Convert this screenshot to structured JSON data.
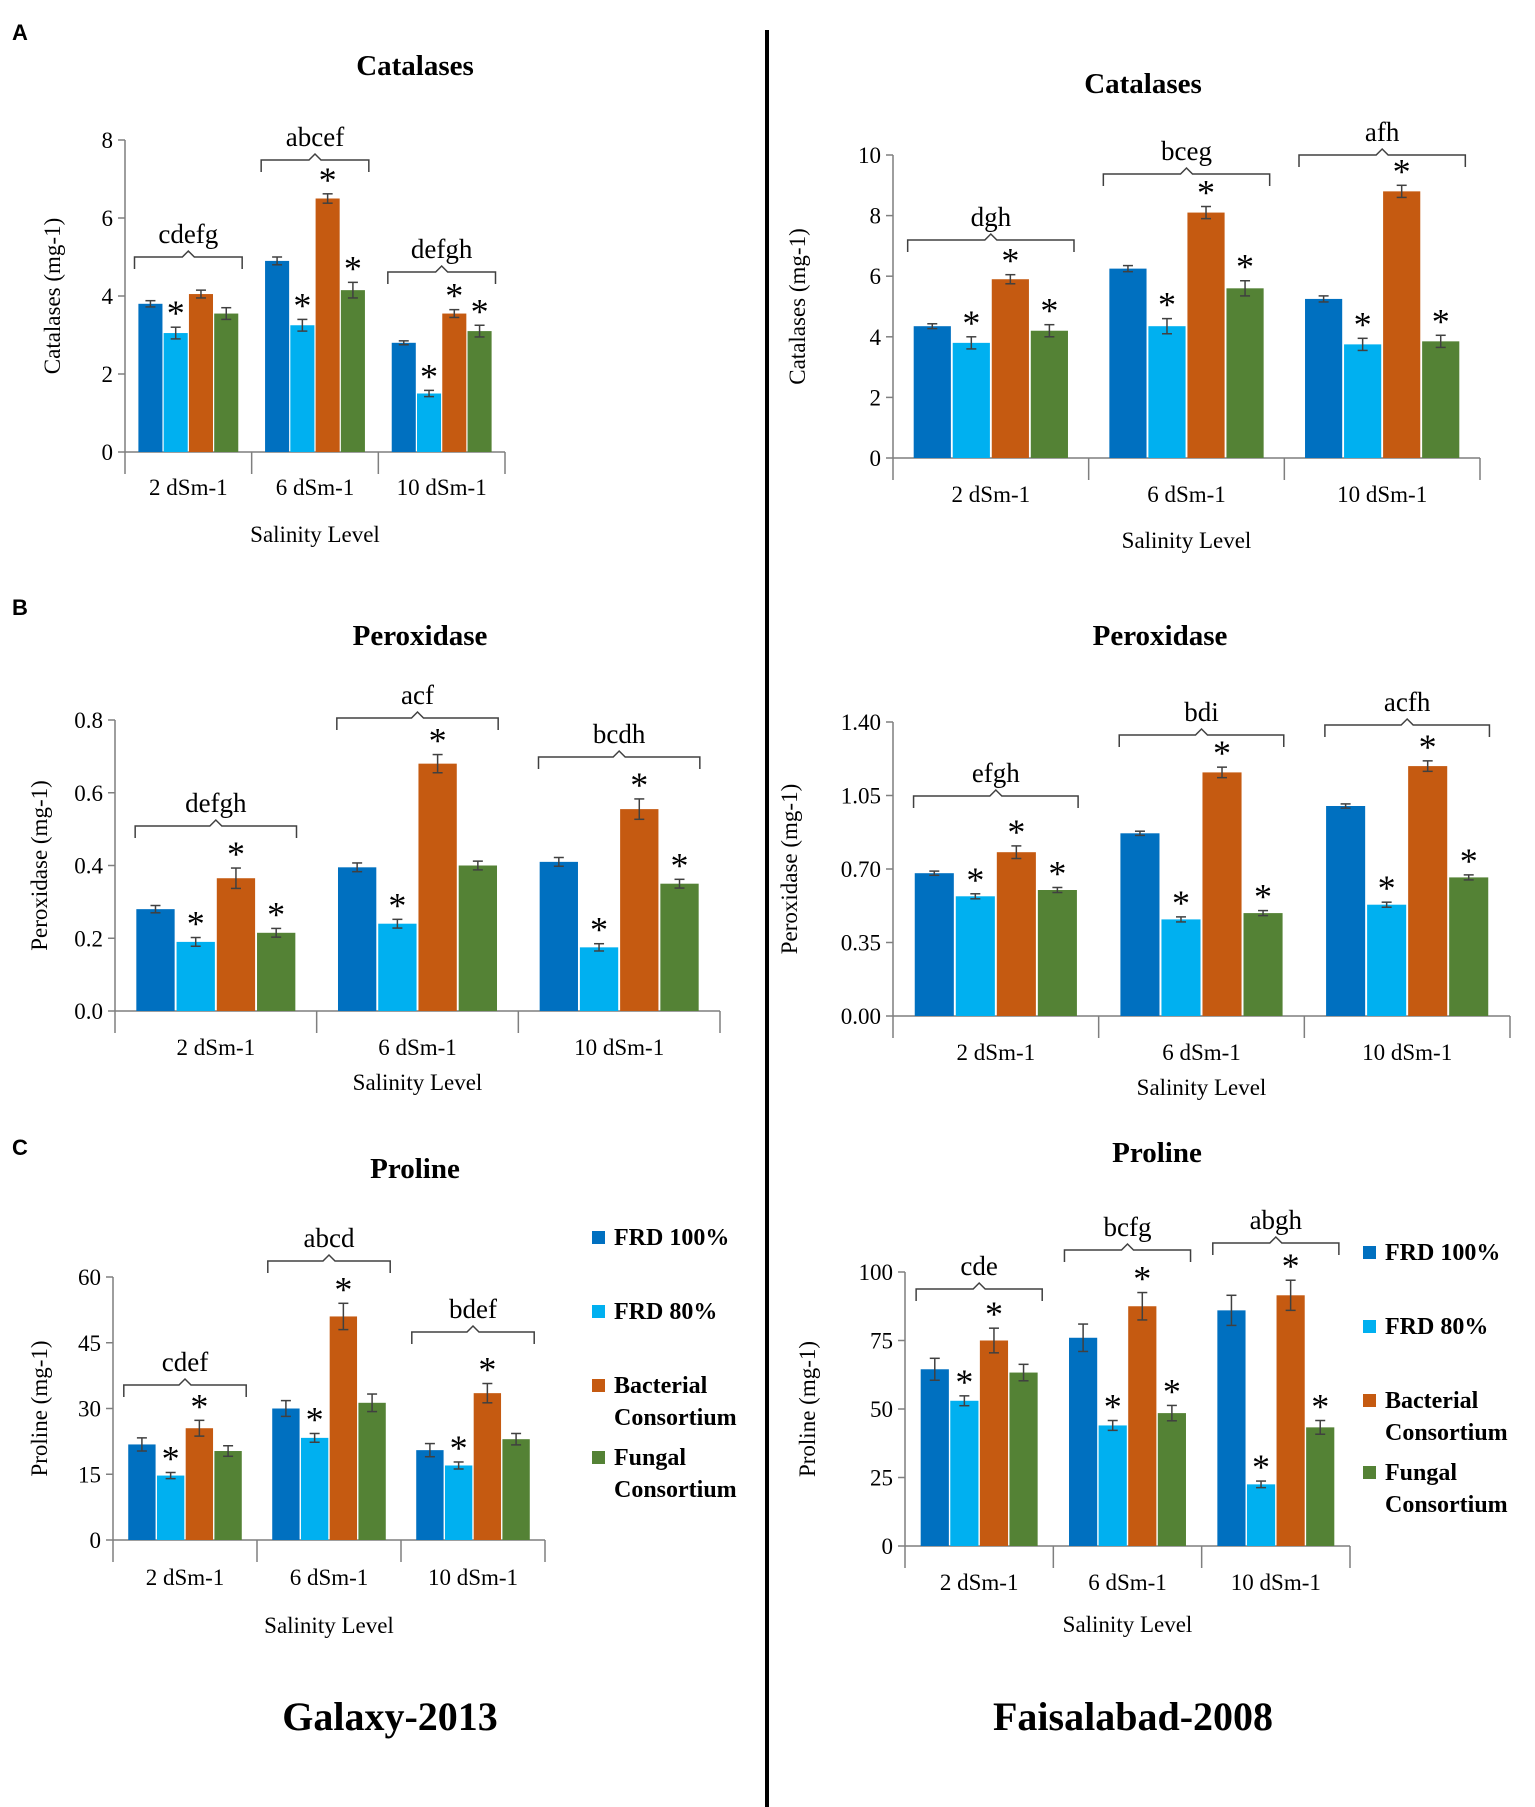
{
  "colors": {
    "FRD 100%": "#0070c0",
    "FRD 80%": "#00b0f0",
    "Bacterial Consortium": "#c55a11",
    "Fungal Consortium": "#548235",
    "axis": "#7f7f7f",
    "error": "#404040"
  },
  "panels": [
    {
      "letter": "A"
    },
    {
      "letter": "B"
    },
    {
      "letter": "C"
    }
  ],
  "columns": [
    {
      "cultivar": "Galaxy-2013"
    },
    {
      "cultivar": "Faisalabad-2008"
    }
  ],
  "legend_entries": [
    [
      "FRD 100%"
    ],
    [
      "FRD 80%"
    ],
    [
      "Bacterial",
      "Consortium"
    ],
    [
      "Fungal",
      "Consortium"
    ]
  ],
  "chart_data": [
    {
      "id": "a-left",
      "type": "bar",
      "title": "Catalases",
      "ylabel": "Catalases  (mg-1)",
      "xlabel": "Salinity Level",
      "categories": [
        "2 dSm-1",
        "6 dSm-1",
        "10 dSm-1"
      ],
      "ylim": [
        0,
        8
      ],
      "ticks": [
        "0",
        "2",
        "4",
        "6",
        "8"
      ],
      "legend": "none",
      "series": [
        {
          "name": "FRD 100%",
          "values": [
            3.8,
            4.9,
            2.8
          ],
          "errors": [
            0.08,
            0.1,
            0.05
          ],
          "stars": [
            false,
            false,
            false
          ]
        },
        {
          "name": "FRD 80%",
          "values": [
            3.05,
            3.25,
            1.5
          ],
          "errors": [
            0.15,
            0.15,
            0.08
          ],
          "stars": [
            true,
            true,
            true
          ]
        },
        {
          "name": "Bacterial Consortium",
          "values": [
            4.05,
            6.5,
            3.55
          ],
          "errors": [
            0.1,
            0.12,
            0.1
          ],
          "stars": [
            false,
            true,
            true
          ]
        },
        {
          "name": "Fungal Consortium",
          "values": [
            3.55,
            4.15,
            3.1
          ],
          "errors": [
            0.15,
            0.2,
            0.15
          ],
          "stars": [
            false,
            true,
            true
          ]
        }
      ],
      "offset_stars": [
        {
          "category": 0,
          "series": 3
        }
      ],
      "group_labels": [
        "cdefg",
        "abcef",
        "defgh"
      ]
    },
    {
      "id": "a-right",
      "type": "bar",
      "title": "Catalases",
      "ylabel": "Catalases (mg-1)",
      "xlabel": "Salinity Level",
      "categories": [
        "2 dSm-1",
        "6 dSm-1",
        "10 dSm-1"
      ],
      "ylim": [
        0,
        10
      ],
      "ticks": [
        "0",
        "2",
        "4",
        "6",
        "8",
        "10"
      ],
      "legend": "none",
      "series": [
        {
          "name": "FRD 100%",
          "values": [
            4.35,
            6.25,
            5.25
          ],
          "errors": [
            0.08,
            0.1,
            0.1
          ],
          "stars": [
            false,
            false,
            false
          ]
        },
        {
          "name": "FRD 80%",
          "values": [
            3.8,
            4.35,
            3.75
          ],
          "errors": [
            0.2,
            0.25,
            0.2
          ],
          "stars": [
            true,
            true,
            true
          ]
        },
        {
          "name": "Bacterial Consortium",
          "values": [
            5.9,
            8.1,
            8.8
          ],
          "errors": [
            0.15,
            0.2,
            0.2
          ],
          "stars": [
            true,
            true,
            true
          ]
        },
        {
          "name": "Fungal Consortium",
          "values": [
            4.2,
            5.6,
            3.85
          ],
          "errors": [
            0.2,
            0.25,
            0.2
          ],
          "stars": [
            true,
            true,
            true
          ]
        }
      ],
      "offset_stars": [],
      "group_labels": [
        "dgh",
        "bceg",
        "afh"
      ]
    },
    {
      "id": "b-left",
      "type": "bar",
      "title": "Peroxidase",
      "ylabel": "Peroxidase (mg-1)",
      "xlabel": "Salinity Level",
      "categories": [
        "2 dSm-1",
        "6 dSm-1",
        "10 dSm-1"
      ],
      "ylim": [
        0,
        0.8
      ],
      "ticks": [
        "0.0",
        "0.2",
        "0.4",
        "0.6",
        "0.8"
      ],
      "legend": "none",
      "series": [
        {
          "name": "FRD 100%",
          "values": [
            0.28,
            0.395,
            0.41
          ],
          "errors": [
            0.01,
            0.012,
            0.012
          ],
          "stars": [
            false,
            false,
            false
          ]
        },
        {
          "name": "FRD 80%",
          "values": [
            0.19,
            0.24,
            0.175
          ],
          "errors": [
            0.012,
            0.012,
            0.01
          ],
          "stars": [
            true,
            true,
            true
          ]
        },
        {
          "name": "Bacterial Consortium",
          "values": [
            0.365,
            0.68,
            0.555
          ],
          "errors": [
            0.028,
            0.025,
            0.028
          ],
          "stars": [
            true,
            true,
            true
          ]
        },
        {
          "name": "Fungal Consortium",
          "values": [
            0.215,
            0.4,
            0.35
          ],
          "errors": [
            0.012,
            0.012,
            0.012
          ],
          "stars": [
            true,
            false,
            true
          ]
        }
      ],
      "offset_stars": [],
      "group_labels": [
        "defgh",
        "acf",
        "bcdh"
      ]
    },
    {
      "id": "b-right",
      "type": "bar",
      "title": "Peroxidase",
      "ylabel": "Peroxidase (mg-1)",
      "xlabel": "Salinity Level",
      "categories": [
        "2 dSm-1",
        "6 dSm-1",
        "10 dSm-1"
      ],
      "ylim": [
        0,
        1.4
      ],
      "ticks": [
        "0.00",
        "0.35",
        "0.70",
        "1.05",
        "1.40"
      ],
      "legend": "none",
      "series": [
        {
          "name": "FRD 100%",
          "values": [
            0.68,
            0.87,
            1.0
          ],
          "errors": [
            0.01,
            0.01,
            0.01
          ],
          "stars": [
            false,
            false,
            false
          ]
        },
        {
          "name": "FRD 80%",
          "values": [
            0.57,
            0.46,
            0.53
          ],
          "errors": [
            0.012,
            0.012,
            0.012
          ],
          "stars": [
            true,
            true,
            true
          ]
        },
        {
          "name": "Bacterial Consortium",
          "values": [
            0.78,
            1.16,
            1.19
          ],
          "errors": [
            0.03,
            0.025,
            0.025
          ],
          "stars": [
            true,
            true,
            true
          ]
        },
        {
          "name": "Fungal Consortium",
          "values": [
            0.6,
            0.49,
            0.66
          ],
          "errors": [
            0.012,
            0.012,
            0.012
          ],
          "stars": [
            true,
            true,
            true
          ]
        }
      ],
      "offset_stars": [],
      "group_labels": [
        "efgh",
        "bdi",
        "acfh"
      ]
    },
    {
      "id": "c-left",
      "type": "bar",
      "title": "Proline",
      "ylabel": "Proline (mg-1)",
      "xlabel": "Salinity Level",
      "categories": [
        "2 dSm-1",
        "6 dSm-1",
        "10 dSm-1"
      ],
      "ylim": [
        0,
        60
      ],
      "ticks": [
        "0",
        "15",
        "30",
        "45",
        "60"
      ],
      "legend": "right",
      "series": [
        {
          "name": "FRD 100%",
          "values": [
            21.8,
            30.0,
            20.5
          ],
          "errors": [
            1.5,
            1.8,
            1.5
          ],
          "stars": [
            false,
            false,
            false
          ]
        },
        {
          "name": "FRD 80%",
          "values": [
            14.7,
            23.3,
            17.0
          ],
          "errors": [
            0.7,
            1.0,
            0.8
          ],
          "stars": [
            true,
            true,
            true
          ]
        },
        {
          "name": "Bacterial Consortium",
          "values": [
            25.5,
            51.0,
            33.5
          ],
          "errors": [
            1.8,
            3.0,
            2.2
          ],
          "stars": [
            true,
            true,
            true
          ]
        },
        {
          "name": "Fungal Consortium",
          "values": [
            20.3,
            31.3,
            23.0
          ],
          "errors": [
            1.2,
            2.0,
            1.3
          ],
          "stars": [
            false,
            false,
            false
          ]
        }
      ],
      "offset_stars": [],
      "group_labels": [
        "cdef",
        "abcd",
        "bdef"
      ]
    },
    {
      "id": "c-right",
      "type": "bar",
      "title": "Proline",
      "ylabel": "Proline (mg-1)",
      "xlabel": "Salinity Level",
      "categories": [
        "2 dSm-1",
        "6 dSm-1",
        "10 dSm-1"
      ],
      "ylim": [
        0,
        100
      ],
      "ticks": [
        "0",
        "25",
        "50",
        "75",
        "100"
      ],
      "legend": "right",
      "series": [
        {
          "name": "FRD 100%",
          "values": [
            64.5,
            76.0,
            86.0
          ],
          "errors": [
            4.0,
            5.0,
            5.5
          ],
          "stars": [
            false,
            false,
            false
          ]
        },
        {
          "name": "FRD 80%",
          "values": [
            53.0,
            44.0,
            22.5
          ],
          "errors": [
            1.8,
            1.8,
            1.2
          ],
          "stars": [
            true,
            true,
            true
          ]
        },
        {
          "name": "Bacterial Consortium",
          "values": [
            75.0,
            87.5,
            91.5
          ],
          "errors": [
            4.5,
            5.0,
            5.5
          ],
          "stars": [
            true,
            true,
            true
          ]
        },
        {
          "name": "Fungal Consortium",
          "values": [
            63.3,
            48.5,
            43.3
          ],
          "errors": [
            3.0,
            2.8,
            2.5
          ],
          "stars": [
            false,
            true,
            true
          ]
        }
      ],
      "offset_stars": [],
      "group_labels": [
        "cde",
        "bcfg",
        "abgh"
      ]
    }
  ]
}
